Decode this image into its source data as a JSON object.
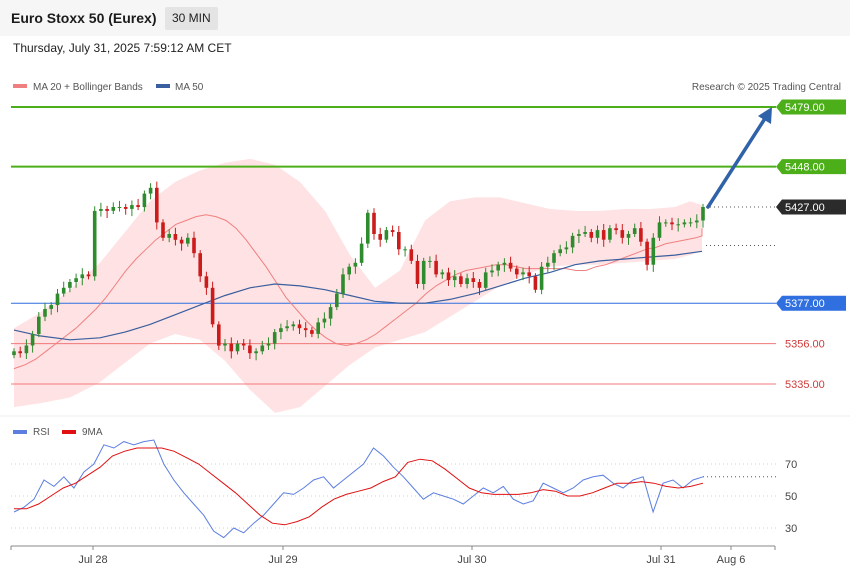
{
  "header": {
    "title": "Euro Stoxx 50 (Eurex)",
    "timeframe": "30 MIN",
    "datetime": "Thursday, July 31, 2025 7:59:12 AM CET",
    "credit": "Research © 2025 Trading Central"
  },
  "colors": {
    "ma20": "#f08080",
    "ma50": "#3a5f9e",
    "band_fill": "#ffdfe0",
    "candle_up": "#2e8b2e",
    "candle_down": "#cc1b1b",
    "resistance": "#4caf1a",
    "support": "#2f6fe0",
    "support_minor": "#f07878",
    "current": "#2b2b2b",
    "arrow": "#2f62a8",
    "rsi": "#5b7ee0",
    "rsi_ma": "#e01010"
  },
  "chart_data": [
    {
      "type": "line",
      "name": "price",
      "legend": [
        {
          "label": "MA 20 + Bollinger Bands",
          "color": "#f08080"
        },
        {
          "label": "MA 50",
          "color": "#3a5f9e"
        }
      ],
      "x_labels": [
        "Jul 28",
        "Jul 29",
        "Jul 30",
        "Jul 31",
        "Aug 6"
      ],
      "y_range": [
        5325,
        5483
      ],
      "levels": [
        {
          "value": 5479,
          "label": "5479.00",
          "kind": "resistance"
        },
        {
          "value": 5448,
          "label": "5448.00",
          "kind": "resistance"
        },
        {
          "value": 5427,
          "label": "5427.00",
          "kind": "current"
        },
        {
          "value": 5377,
          "label": "5377.00",
          "kind": "support"
        },
        {
          "value": 5356,
          "label": "5356.00",
          "kind": "support_minor"
        },
        {
          "value": 5335,
          "label": "5335.00",
          "kind": "support_minor"
        }
      ],
      "close": [
        5352,
        5351,
        5355,
        5361,
        5370,
        5374,
        5376,
        5382,
        5385,
        5388,
        5390,
        5392,
        5391,
        5425,
        5426,
        5425,
        5427,
        5427,
        5426,
        5428,
        5427,
        5434,
        5437,
        5419,
        5411,
        5413,
        5410,
        5408,
        5411,
        5403,
        5391,
        5385,
        5366,
        5355,
        5356,
        5352,
        5356,
        5355,
        5351,
        5352,
        5355,
        5356,
        5362,
        5364,
        5365,
        5366,
        5364,
        5363,
        5361,
        5367,
        5369,
        5375,
        5382,
        5392,
        5396,
        5398,
        5408,
        5424,
        5413,
        5410,
        5415,
        5414,
        5405,
        5405,
        5399,
        5387,
        5399,
        5399,
        5392,
        5393,
        5389,
        5391,
        5387,
        5390,
        5388,
        5385,
        5393,
        5394,
        5397,
        5398,
        5395,
        5392,
        5393,
        5391,
        5384,
        5396,
        5398,
        5403,
        5405,
        5406,
        5412,
        5413,
        5414,
        5411,
        5415,
        5410,
        5416,
        5415,
        5411,
        5413,
        5416,
        5409,
        5397,
        5411,
        5419,
        5419,
        5418,
        5418,
        5419,
        5419,
        5420,
        5427
      ],
      "ma20": [
        5343,
        5345,
        5348,
        5352,
        5356,
        5360,
        5364,
        5369,
        5374,
        5380,
        5387,
        5394,
        5400,
        5405,
        5410,
        5414,
        5418,
        5420,
        5422,
        5423,
        5422,
        5420,
        5416,
        5410,
        5403,
        5396,
        5388,
        5380,
        5374,
        5368,
        5363,
        5359,
        5356,
        5355,
        5356,
        5358,
        5361,
        5365,
        5369,
        5373,
        5377,
        5382,
        5386,
        5389,
        5392,
        5394,
        5395,
        5396,
        5397,
        5397,
        5396,
        5395,
        5395,
        5395,
        5395,
        5395,
        5394,
        5394,
        5396,
        5397,
        5399,
        5401,
        5403,
        5405,
        5406,
        5408,
        5409,
        5410,
        5411,
        5412,
        5413,
        5414,
        5415,
        5416
      ],
      "ma20_x": [
        14,
        25,
        36,
        46,
        56,
        66,
        76,
        86,
        96,
        106,
        116,
        126,
        136,
        146,
        156,
        166,
        176,
        186,
        196,
        206,
        216,
        226,
        236,
        246,
        256,
        266,
        276,
        286,
        296,
        306,
        316,
        326,
        336,
        346,
        356,
        366,
        376,
        386,
        396,
        406,
        416,
        426,
        436,
        446,
        456,
        466,
        476,
        486,
        496,
        506,
        516,
        526,
        536,
        546,
        556,
        566,
        576,
        586,
        596,
        606,
        616,
        626,
        636,
        646,
        656,
        666,
        676,
        686,
        696,
        702,
        702,
        702,
        702,
        702
      ],
      "ma50": [
        5363,
        5360,
        5358,
        5359,
        5362,
        5366,
        5371,
        5376,
        5381,
        5385,
        5387,
        5386,
        5384,
        5381,
        5378,
        5377,
        5377,
        5379,
        5382,
        5386,
        5390,
        5393,
        5397,
        5399,
        5400,
        5401,
        5402,
        5404
      ],
      "ma50_x": [
        14,
        40,
        70,
        100,
        125,
        150,
        175,
        200,
        225,
        250,
        275,
        300,
        325,
        350,
        375,
        400,
        425,
        450,
        475,
        500,
        525,
        550,
        575,
        600,
        625,
        650,
        675,
        702
      ],
      "band_upper": [
        5364,
        5372,
        5384,
        5398,
        5414,
        5430,
        5440,
        5446,
        5450,
        5452,
        5449,
        5440,
        5425,
        5402,
        5385,
        5394,
        5420,
        5430,
        5432,
        5432,
        5429,
        5426,
        5425,
        5425,
        5426,
        5426,
        5427,
        5430,
        5428
      ],
      "band_lower": [
        5323,
        5325,
        5328,
        5336,
        5346,
        5356,
        5361,
        5358,
        5347,
        5332,
        5320,
        5323,
        5334,
        5345,
        5354,
        5358,
        5362,
        5370,
        5378,
        5386,
        5392,
        5396,
        5397,
        5397,
        5398,
        5399,
        5400,
        5402,
        5404
      ],
      "band_x": [
        14,
        40,
        70,
        100,
        125,
        150,
        175,
        200,
        225,
        250,
        275,
        300,
        325,
        350,
        375,
        400,
        425,
        450,
        475,
        500,
        525,
        550,
        575,
        600,
        625,
        650,
        675,
        690,
        702
      ]
    },
    {
      "type": "line",
      "name": "rsi",
      "legend": [
        {
          "label": "RSI",
          "color": "#5b7ee0"
        },
        {
          "label": "9MA",
          "color": "#e01010"
        }
      ],
      "y_ticks": [
        70,
        50,
        30
      ],
      "y_range": [
        15,
        88
      ],
      "rsi": [
        40,
        43,
        48,
        60,
        56,
        62,
        55,
        65,
        70,
        82,
        80,
        84,
        82,
        84,
        85,
        70,
        60,
        52,
        45,
        38,
        28,
        24,
        30,
        27,
        33,
        38,
        45,
        52,
        51,
        55,
        60,
        62,
        55,
        60,
        65,
        70,
        80,
        75,
        68,
        62,
        55,
        48,
        52,
        50,
        48,
        45,
        50,
        55,
        52,
        56,
        48,
        45,
        47,
        58,
        55,
        52,
        55,
        60,
        62,
        63,
        58,
        55,
        60,
        62,
        40,
        58,
        60,
        55,
        60,
        62
      ],
      "rsi_ma": [
        42,
        42,
        45,
        50,
        55,
        58,
        63,
        68,
        75,
        78,
        80,
        80,
        80,
        78,
        74,
        70,
        64,
        58,
        52,
        45,
        38,
        33,
        32,
        34,
        37,
        43,
        48,
        51,
        53,
        55,
        59,
        62,
        71,
        73,
        72,
        67,
        61,
        55,
        52,
        51,
        51,
        51,
        52,
        54,
        53,
        50,
        50,
        52,
        55,
        58,
        58,
        59,
        58,
        56,
        55,
        56,
        58
      ]
    }
  ]
}
